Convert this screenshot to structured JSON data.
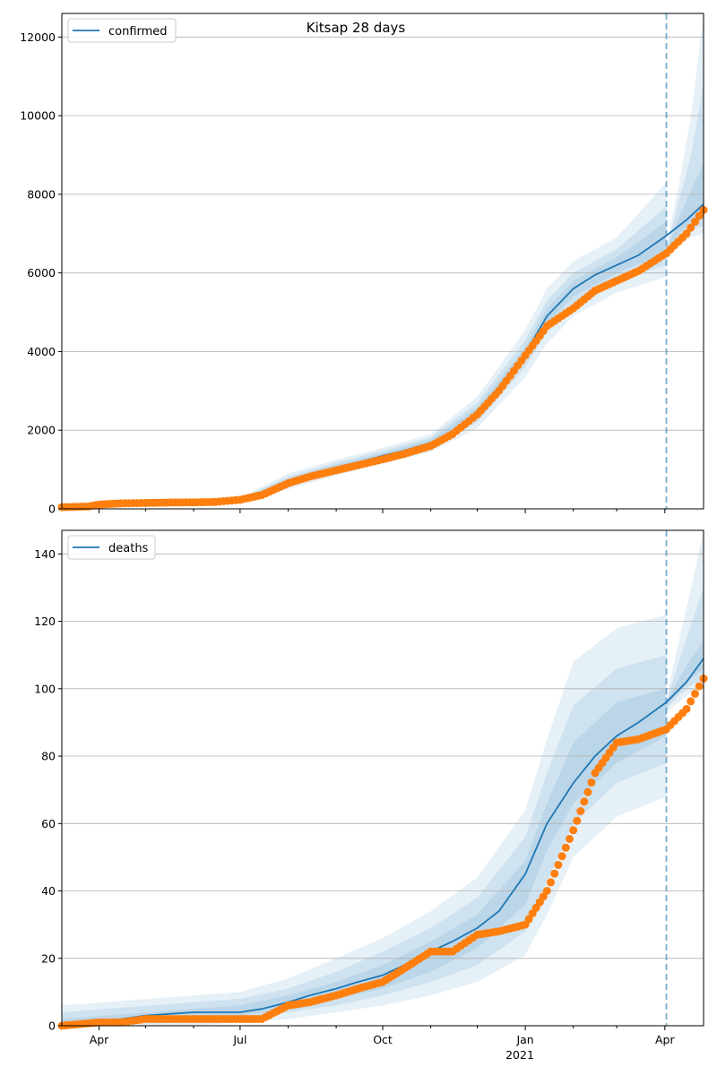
{
  "figure_title": "Kitsap 28 days",
  "colors": {
    "model": "#1f77b4",
    "observed": "#ff7f0e",
    "band": "#1f77b4",
    "grid": "#b0b0b0",
    "forecast_line": "#1f77b4"
  },
  "chart_data": [
    {
      "type": "line",
      "title": "Kitsap 28 days",
      "xlabel": "",
      "ylabel": "",
      "x_axis": "date",
      "xlim": [
        "2020-03-08",
        "2021-04-26"
      ],
      "ylim": [
        0,
        12600
      ],
      "yticks": [
        0,
        2000,
        4000,
        6000,
        8000,
        10000,
        12000
      ],
      "ytick_labels": [
        "0",
        "2000",
        "4000",
        "6000",
        "8000",
        "10000",
        "12000"
      ],
      "grid": "horizontal",
      "legend": {
        "placement": "top-left",
        "entries": [
          "confirmed"
        ]
      },
      "forecast_start": "2021-04-02",
      "series": [
        {
          "name": "confirmed",
          "kind": "model-line",
          "x": [
            "2020-03-08",
            "2020-04-01",
            "2020-05-01",
            "2020-06-01",
            "2020-07-01",
            "2020-07-15",
            "2020-08-01",
            "2020-08-15",
            "2020-09-01",
            "2020-09-15",
            "2020-10-01",
            "2020-10-15",
            "2020-11-01",
            "2020-11-15",
            "2020-12-01",
            "2020-12-15",
            "2021-01-01",
            "2021-01-15",
            "2021-02-01",
            "2021-02-15",
            "2021-03-01",
            "2021-03-15",
            "2021-04-02",
            "2021-04-15",
            "2021-04-26"
          ],
          "y": [
            40,
            120,
            160,
            180,
            220,
            380,
            700,
            870,
            1050,
            1180,
            1350,
            1480,
            1680,
            1950,
            2450,
            3100,
            3950,
            4900,
            5600,
            5950,
            6200,
            6450,
            6950,
            7350,
            7750
          ]
        },
        {
          "name": "",
          "kind": "observed-points",
          "x": [
            "2020-03-08",
            "2020-03-25",
            "2020-04-01",
            "2020-04-15",
            "2020-05-01",
            "2020-05-15",
            "2020-06-01",
            "2020-06-15",
            "2020-07-01",
            "2020-07-15",
            "2020-08-01",
            "2020-08-15",
            "2020-09-01",
            "2020-09-15",
            "2020-10-01",
            "2020-10-15",
            "2020-11-01",
            "2020-11-15",
            "2020-12-01",
            "2020-12-15",
            "2021-01-01",
            "2021-01-15",
            "2021-02-01",
            "2021-02-15",
            "2021-03-01",
            "2021-03-15",
            "2021-04-02",
            "2021-04-15",
            "2021-04-26"
          ],
          "y": [
            40,
            60,
            110,
            140,
            150,
            160,
            165,
            175,
            230,
            350,
            650,
            820,
            980,
            1110,
            1260,
            1400,
            1600,
            1900,
            2400,
            3000,
            3900,
            4650,
            5100,
            5550,
            5800,
            6050,
            6500,
            7000,
            7600
          ]
        }
      ],
      "bands": [
        {
          "x": [
            "2020-03-08",
            "2020-06-01",
            "2020-07-01",
            "2020-08-01",
            "2020-09-01",
            "2020-10-01",
            "2020-11-01",
            "2020-12-01",
            "2021-01-01",
            "2021-01-15",
            "2021-02-01",
            "2021-03-01",
            "2021-04-02"
          ],
          "lower": [
            0,
            130,
            170,
            500,
            850,
            1150,
            1450,
            2050,
            3350,
            4200,
            4900,
            5500,
            5900
          ],
          "upper": [
            80,
            230,
            280,
            900,
            1250,
            1550,
            1900,
            2850,
            4550,
            5600,
            6300,
            6900,
            8300
          ]
        },
        {
          "x": [
            "2020-03-08",
            "2020-06-01",
            "2020-07-01",
            "2020-08-01",
            "2020-09-01",
            "2020-10-01",
            "2020-11-01",
            "2020-12-01",
            "2021-01-01",
            "2021-01-15",
            "2021-02-01",
            "2021-03-01",
            "2021-04-02"
          ],
          "lower": [
            10,
            150,
            190,
            580,
            920,
            1220,
            1530,
            2200,
            3600,
            4500,
            5200,
            5800,
            6200
          ],
          "upper": [
            70,
            210,
            260,
            820,
            1180,
            1480,
            1820,
            2700,
            4300,
            5300,
            6000,
            6600,
            7700
          ]
        },
        {
          "x": [
            "2020-03-08",
            "2020-06-01",
            "2020-07-01",
            "2020-08-01",
            "2020-09-01",
            "2020-10-01",
            "2020-11-01",
            "2020-12-01",
            "2021-01-01",
            "2021-01-15",
            "2021-02-01",
            "2021-03-01",
            "2021-04-02"
          ],
          "lower": [
            20,
            160,
            200,
            630,
            980,
            1280,
            1590,
            2320,
            3800,
            4700,
            5400,
            6000,
            6500
          ],
          "upper": [
            60,
            200,
            240,
            770,
            1120,
            1420,
            1760,
            2580,
            4100,
            5100,
            5800,
            6400,
            7300
          ]
        },
        {
          "x": [
            "2021-04-02",
            "2021-04-10",
            "2021-04-18",
            "2021-04-26"
          ],
          "lower": [
            6300,
            6700,
            6900,
            7000
          ],
          "upper": [
            6700,
            8200,
            10000,
            12600
          ]
        },
        {
          "x": [
            "2021-04-02",
            "2021-04-10",
            "2021-04-18",
            "2021-04-26"
          ],
          "lower": [
            6400,
            6900,
            7100,
            7200
          ],
          "upper": [
            6600,
            7800,
            9000,
            10800
          ]
        },
        {
          "x": [
            "2021-04-02",
            "2021-04-10",
            "2021-04-18",
            "2021-04-26"
          ],
          "lower": [
            6500,
            7000,
            7300,
            7400
          ],
          "upper": [
            6550,
            7400,
            8100,
            8800
          ]
        }
      ]
    },
    {
      "type": "line",
      "title": "",
      "xlabel": "",
      "ylabel": "",
      "x_axis": "date",
      "xlim": [
        "2020-03-08",
        "2021-04-26"
      ],
      "ylim": [
        0,
        147
      ],
      "yticks": [
        0,
        20,
        40,
        60,
        80,
        100,
        120,
        140
      ],
      "ytick_labels": [
        "0",
        "20",
        "40",
        "60",
        "80",
        "100",
        "120",
        "140"
      ],
      "xticks": [
        "2020-04-01",
        "2020-07-01",
        "2020-10-01",
        "2021-01-01",
        "2021-04-01"
      ],
      "xtick_labels": [
        "Apr",
        "Jul",
        "Oct",
        "Jan",
        "Apr"
      ],
      "xtick_sublabel": "2021",
      "grid": "horizontal",
      "legend": {
        "placement": "top-left",
        "entries": [
          "deaths"
        ]
      },
      "forecast_start": "2021-04-02",
      "series": [
        {
          "name": "deaths",
          "kind": "model-line",
          "x": [
            "2020-03-08",
            "2020-04-01",
            "2020-05-01",
            "2020-06-01",
            "2020-07-01",
            "2020-07-15",
            "2020-08-01",
            "2020-08-15",
            "2020-09-01",
            "2020-09-15",
            "2020-10-01",
            "2020-10-15",
            "2020-11-01",
            "2020-11-15",
            "2020-12-01",
            "2020-12-15",
            "2021-01-01",
            "2021-01-15",
            "2021-02-01",
            "2021-02-15",
            "2021-03-01",
            "2021-03-15",
            "2021-04-02",
            "2021-04-15",
            "2021-04-26"
          ],
          "y": [
            0,
            1,
            3,
            4,
            4,
            5,
            7,
            9,
            11,
            13,
            15,
            18,
            22,
            25,
            29,
            34,
            45,
            60,
            72,
            80,
            86,
            90,
            96,
            102,
            109
          ]
        },
        {
          "name": "",
          "kind": "observed-points",
          "x": [
            "2020-03-08",
            "2020-04-01",
            "2020-04-15",
            "2020-05-01",
            "2020-06-01",
            "2020-07-01",
            "2020-07-15",
            "2020-08-01",
            "2020-08-15",
            "2020-09-01",
            "2020-09-15",
            "2020-10-01",
            "2020-10-15",
            "2020-11-01",
            "2020-11-15",
            "2020-12-01",
            "2020-12-15",
            "2021-01-01",
            "2021-01-15",
            "2021-02-01",
            "2021-02-15",
            "2021-03-01",
            "2021-03-15",
            "2021-04-02",
            "2021-04-15",
            "2021-04-26"
          ],
          "y": [
            0,
            1,
            1,
            2,
            2,
            2,
            2,
            6,
            7,
            9,
            11,
            13,
            17,
            22,
            22,
            27,
            28,
            30,
            40,
            58,
            75,
            84,
            85,
            88,
            94,
            103
          ]
        }
      ],
      "bands": [
        {
          "x": [
            "2020-03-08",
            "2020-06-01",
            "2020-07-01",
            "2020-08-01",
            "2020-09-01",
            "2020-10-01",
            "2020-11-01",
            "2020-12-01",
            "2021-01-01",
            "2021-01-15",
            "2021-02-01",
            "2021-03-01",
            "2021-04-02"
          ],
          "lower": [
            0,
            0,
            1,
            2,
            4,
            6,
            9,
            13,
            21,
            33,
            50,
            62,
            68
          ],
          "upper": [
            6,
            9,
            10,
            14,
            20,
            26,
            34,
            44,
            64,
            85,
            108,
            118,
            122
          ]
        },
        {
          "x": [
            "2020-03-08",
            "2020-06-01",
            "2020-07-01",
            "2020-08-01",
            "2020-09-01",
            "2020-10-01",
            "2020-11-01",
            "2020-12-01",
            "2021-01-01",
            "2021-01-15",
            "2021-02-01",
            "2021-03-01",
            "2021-04-02"
          ],
          "lower": [
            0,
            1,
            2,
            4,
            6,
            9,
            13,
            18,
            28,
            43,
            60,
            72,
            78
          ],
          "upper": [
            4,
            7,
            8,
            11,
            16,
            22,
            29,
            38,
            56,
            75,
            95,
            106,
            110
          ]
        },
        {
          "x": [
            "2020-03-08",
            "2020-06-01",
            "2020-07-01",
            "2020-08-01",
            "2020-09-01",
            "2020-10-01",
            "2020-11-01",
            "2020-12-01",
            "2021-01-01",
            "2021-01-15",
            "2021-02-01",
            "2021-03-01",
            "2021-04-02"
          ],
          "lower": [
            0,
            2,
            3,
            5,
            8,
            11,
            16,
            23,
            36,
            52,
            66,
            78,
            86
          ],
          "upper": [
            2,
            5,
            6,
            9,
            13,
            18,
            25,
            33,
            49,
            66,
            84,
            96,
            100
          ]
        },
        {
          "x": [
            "2021-04-02",
            "2021-04-10",
            "2021-04-18",
            "2021-04-26"
          ],
          "lower": [
            93,
            96,
            99,
            100
          ],
          "upper": [
            97,
            114,
            130,
            147
          ]
        },
        {
          "x": [
            "2021-04-02",
            "2021-04-10",
            "2021-04-18",
            "2021-04-26"
          ],
          "lower": [
            94,
            98,
            101,
            103
          ],
          "upper": [
            96,
            108,
            119,
            130
          ]
        },
        {
          "x": [
            "2021-04-02",
            "2021-04-10",
            "2021-04-18",
            "2021-04-26"
          ],
          "lower": [
            95,
            99,
            103,
            106
          ],
          "upper": [
            96,
            103,
            109,
            114
          ]
        }
      ]
    }
  ]
}
